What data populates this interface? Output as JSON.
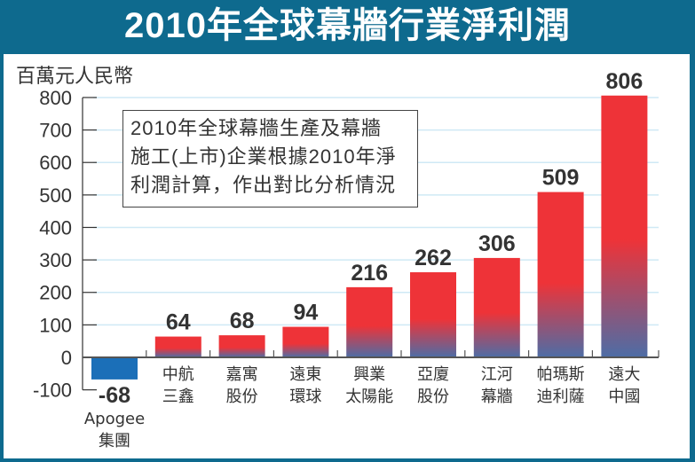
{
  "header": {
    "title": "2010年全球幕牆行業淨利潤"
  },
  "note": {
    "lines": [
      "2010年全球幕牆生產及幕牆",
      "施工(上市)企業根據2010年淨",
      "利潤計算，作出對比分析情況"
    ]
  },
  "colors": {
    "frame": "#0e6a8e",
    "positive_top": "#ee3338",
    "positive_bottom": "#4d6da6",
    "negative": "#1b6fb8",
    "gridline": "#cfe9f5",
    "label": "#333333"
  },
  "chart_data": {
    "type": "bar",
    "title": "2010年全球幕牆行業淨利潤",
    "ylabel": "百萬元人民幣",
    "xlabel": "",
    "ylim": [
      -100,
      800
    ],
    "yticks": [
      800,
      700,
      600,
      500,
      400,
      300,
      200,
      100,
      0,
      -100
    ],
    "grid": true,
    "categories": [
      [
        "Apogee",
        "集團"
      ],
      [
        "中航",
        "三鑫"
      ],
      [
        "嘉寓",
        "股份"
      ],
      [
        "遠東",
        "環球"
      ],
      [
        "興業",
        "太陽能"
      ],
      [
        "亞廈",
        "股份"
      ],
      [
        "江河",
        "幕牆"
      ],
      [
        "帕瑪斯",
        "迪利薩"
      ],
      [
        "遠大",
        "中國"
      ]
    ],
    "values": [
      -68,
      64,
      68,
      94,
      216,
      262,
      306,
      509,
      806
    ],
    "data_labels": [
      "-68",
      "64",
      "68",
      "94",
      "216",
      "262",
      "306",
      "509",
      "806"
    ]
  }
}
